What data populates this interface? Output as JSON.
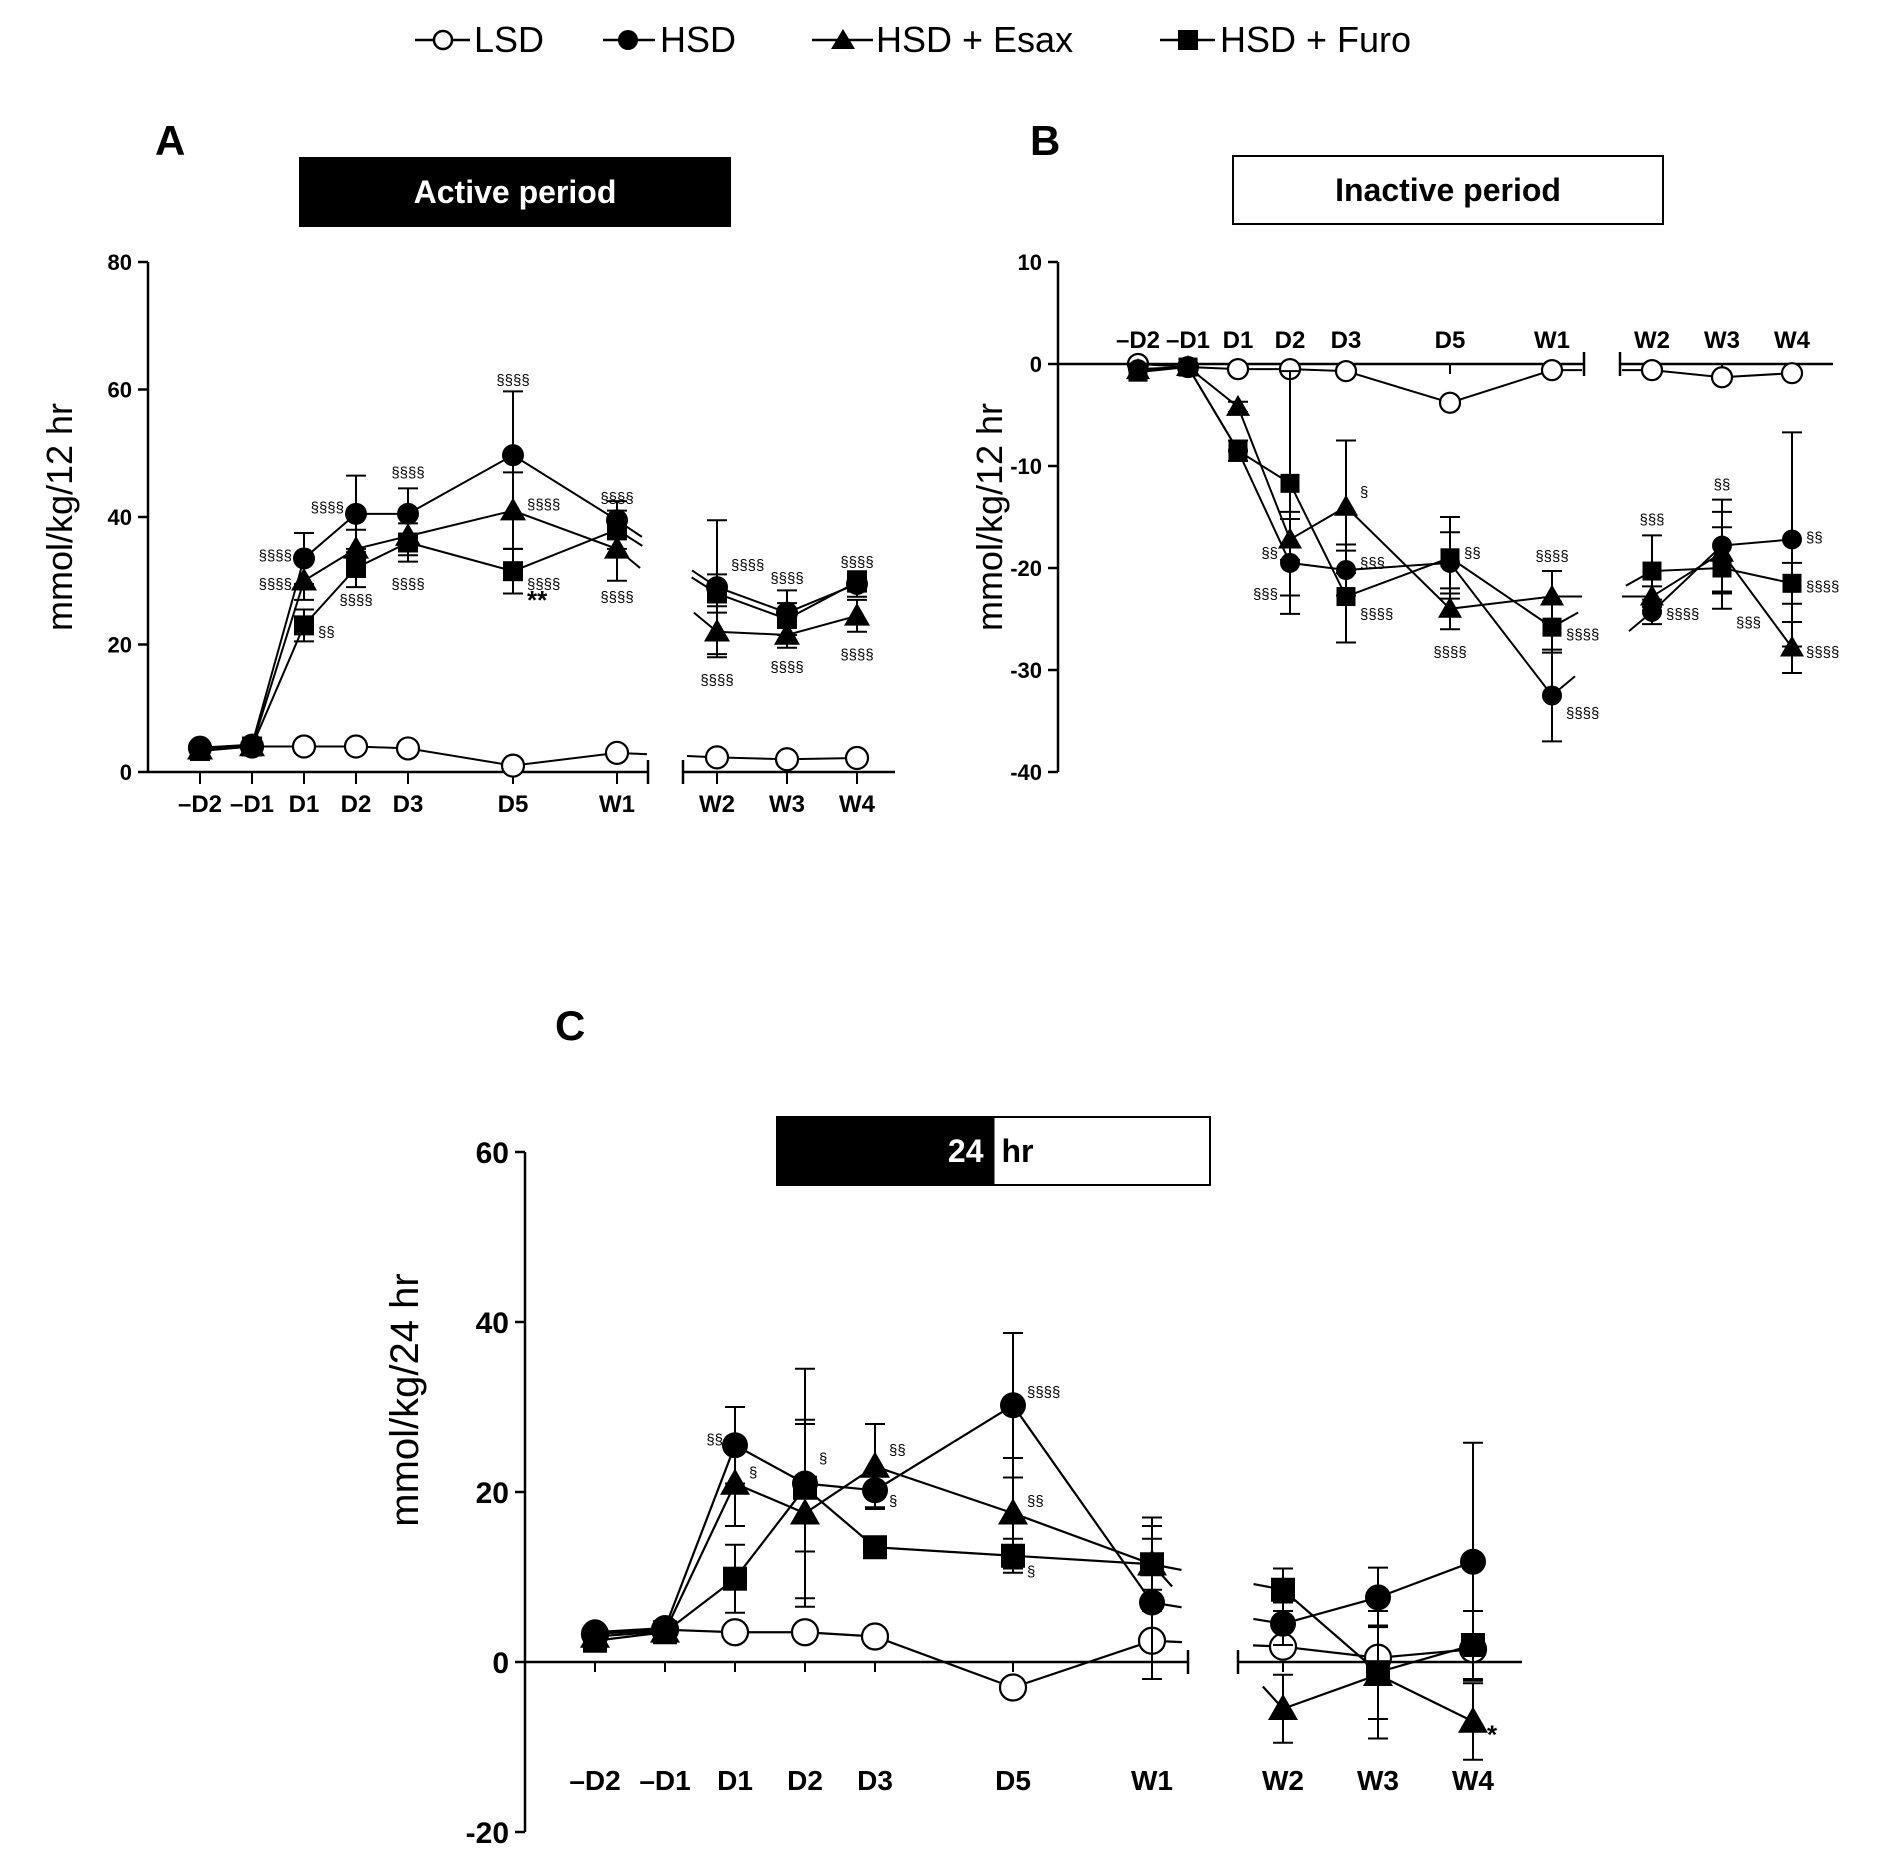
{
  "legend": {
    "items": [
      {
        "label": "LSD",
        "marker": "circle-open"
      },
      {
        "label": "HSD",
        "marker": "circle-filled"
      },
      {
        "label": "HSD + Esax",
        "marker": "triangle-filled"
      },
      {
        "label": "HSD + Furo",
        "marker": "square-filled"
      }
    ]
  },
  "chart_data": [
    {
      "panel": "A",
      "type": "line",
      "banner": {
        "text": "Active period",
        "style": "black"
      },
      "ylabel": "mmol/kg/12 hr",
      "ylim": [
        0,
        80
      ],
      "yticks": [
        0,
        20,
        40,
        60,
        80
      ],
      "categories": [
        "–D2",
        "–D1",
        "D1",
        "D2",
        "D3",
        "D5",
        "W1",
        "W2",
        "W3",
        "W4"
      ],
      "axis_break_after": "W1",
      "series": [
        {
          "name": "LSD",
          "values": [
            3.8,
            4.0,
            4.0,
            4.0,
            3.7,
            1.0,
            3.0,
            2.3,
            2.0,
            2.2
          ],
          "errors": [
            0,
            0,
            0,
            0,
            0,
            0,
            0,
            0,
            0,
            0
          ]
        },
        {
          "name": "HSD",
          "values": [
            3.8,
            4.3,
            33.5,
            40.5,
            40.5,
            49.7,
            39.5,
            29.0,
            25.0,
            29.5
          ],
          "errors": [
            0,
            0,
            4.0,
            6.0,
            4.0,
            10.0,
            3.0,
            10.5,
            3.5,
            2.0
          ]
        },
        {
          "name": "HSD + Esax",
          "values": [
            3.5,
            4.0,
            30.0,
            35.0,
            37.0,
            41.0,
            35.0,
            22.0,
            21.5,
            24.5
          ],
          "errors": [
            0,
            0,
            3.0,
            3.0,
            3.0,
            6.0,
            5.0,
            4.0,
            2.0,
            2.5
          ]
        },
        {
          "name": "HSD + Furo",
          "values": [
            3.3,
            4.0,
            23.0,
            32.0,
            36.0,
            31.5,
            38.0,
            28.0,
            24.0,
            29.8
          ],
          "errors": [
            0,
            0,
            2.5,
            3.0,
            3.0,
            3.5,
            3.0,
            3.0,
            2.5,
            1.5
          ]
        }
      ],
      "annotations": [
        {
          "at": "D1",
          "y": 34,
          "text": "§§§§",
          "side": "left"
        },
        {
          "at": "D1",
          "y": 29.5,
          "text": "§§§§",
          "side": "left"
        },
        {
          "at": "D1",
          "y": 22,
          "text": "§§",
          "side": "right"
        },
        {
          "at": "D2",
          "y": 41.5,
          "text": "§§§§",
          "side": "left"
        },
        {
          "at": "D2",
          "y": 27,
          "text": "§§§§",
          "side": "center"
        },
        {
          "at": "D3",
          "y": 47,
          "text": "§§§§",
          "side": "center"
        },
        {
          "at": "D3",
          "y": 29.5,
          "text": "§§§§",
          "side": "center"
        },
        {
          "at": "D5",
          "y": 61.5,
          "text": "§§§§",
          "side": "center"
        },
        {
          "at": "D5",
          "y": 42,
          "text": "§§§§",
          "side": "right"
        },
        {
          "at": "D5",
          "y": 29.5,
          "text": "§§§§",
          "side": "right"
        },
        {
          "at": "D5",
          "y": 27,
          "text": "**",
          "side": "right",
          "size": "large"
        },
        {
          "at": "W1",
          "y": 43,
          "text": "§§§§",
          "side": "center"
        },
        {
          "at": "W1",
          "y": 27.5,
          "text": "§§§§",
          "side": "center"
        },
        {
          "at": "W2",
          "y": 32.5,
          "text": "§§§§",
          "side": "right"
        },
        {
          "at": "W2",
          "y": 14.5,
          "text": "§§§§",
          "side": "center"
        },
        {
          "at": "W3",
          "y": 30.5,
          "text": "§§§§",
          "side": "center"
        },
        {
          "at": "W3",
          "y": 16.5,
          "text": "§§§§",
          "side": "center"
        },
        {
          "at": "W4",
          "y": 33,
          "text": "§§§§",
          "side": "center"
        },
        {
          "at": "W4",
          "y": 18.5,
          "text": "§§§§",
          "side": "center"
        }
      ]
    },
    {
      "panel": "B",
      "type": "line",
      "banner": {
        "text": "Inactive period",
        "style": "white"
      },
      "ylabel": "mmol/kg/12 hr",
      "ylim": [
        -40,
        10
      ],
      "yticks": [
        10,
        0,
        -10,
        -20,
        -30,
        -40
      ],
      "categories": [
        "–D2",
        "–D1",
        "D1",
        "D2",
        "D3",
        "D5",
        "W1",
        "W2",
        "W3",
        "W4"
      ],
      "axis_break_after": "W1",
      "series": [
        {
          "name": "LSD",
          "values": [
            0,
            -0.3,
            -0.5,
            -0.5,
            -0.7,
            -3.8,
            -0.6,
            -0.6,
            -1.3,
            -0.9
          ],
          "errors": [
            0,
            0,
            0,
            0,
            0,
            0,
            0,
            0,
            0,
            0
          ]
        },
        {
          "name": "HSD",
          "values": [
            -0.5,
            -0.3,
            -8.5,
            -19.5,
            -20.2,
            -19.5,
            -32.5,
            -24.3,
            -17.8,
            -17.2
          ],
          "errors": [
            0,
            0,
            1.0,
            5.0,
            2.5,
            3.0,
            4.5,
            1.2,
            4.5,
            10.5
          ]
        },
        {
          "name": "HSD + Esax",
          "values": [
            -0.6,
            -0.3,
            -4.2,
            -17.2,
            -14.0,
            -24.0,
            -22.8,
            -22.8,
            -18.5,
            -27.8
          ],
          "errors": [
            0,
            0,
            0.5,
            2.0,
            6.5,
            2.0,
            2.5,
            1.0,
            4.0,
            2.5
          ]
        },
        {
          "name": "HSD + Furo",
          "values": [
            -0.8,
            -0.3,
            -8.5,
            -11.7,
            -22.8,
            -19.0,
            -25.8,
            -20.3,
            -20.0,
            -21.5
          ],
          "errors": [
            0,
            0,
            1.0,
            11.0,
            4.5,
            4.0,
            2.5,
            3.5,
            4.0,
            2.0
          ]
        }
      ],
      "annotations": [
        {
          "at": "D2",
          "y": -18.5,
          "text": "§§",
          "side": "left"
        },
        {
          "at": "D2",
          "y": -22.5,
          "text": "§§§",
          "side": "left"
        },
        {
          "at": "D3",
          "y": -12.5,
          "text": "§",
          "side": "right"
        },
        {
          "at": "D3",
          "y": -19.5,
          "text": "§§§",
          "side": "right"
        },
        {
          "at": "D3",
          "y": -24.5,
          "text": "§§§§",
          "side": "right"
        },
        {
          "at": "D5",
          "y": -18.5,
          "text": "§§",
          "side": "right"
        },
        {
          "at": "D5",
          "y": -28.2,
          "text": "§§§§",
          "side": "center"
        },
        {
          "at": "W1",
          "y": -18.8,
          "text": "§§§§",
          "side": "center"
        },
        {
          "at": "W1",
          "y": -26.5,
          "text": "§§§§",
          "side": "right"
        },
        {
          "at": "W1",
          "y": -34.2,
          "text": "§§§§",
          "side": "right"
        },
        {
          "at": "W2",
          "y": -15.2,
          "text": "§§§",
          "side": "center"
        },
        {
          "at": "W2",
          "y": -24.5,
          "text": "§§§§",
          "side": "right"
        },
        {
          "at": "W3",
          "y": -11.8,
          "text": "§§",
          "side": "center"
        },
        {
          "at": "W3",
          "y": -25.3,
          "text": "§§§",
          "side": "right"
        },
        {
          "at": "W4",
          "y": -17.0,
          "text": "§§",
          "side": "right"
        },
        {
          "at": "W4",
          "y": -21.8,
          "text": "§§§§",
          "side": "right"
        },
        {
          "at": "W4",
          "y": -28.2,
          "text": "§§§§",
          "side": "right"
        }
      ]
    },
    {
      "panel": "C",
      "type": "line",
      "banner": {
        "left": "24",
        "right": "hr",
        "style": "split"
      },
      "ylabel": "mmol/kg/24 hr",
      "ylim": [
        -20,
        60
      ],
      "yticks": [
        60,
        40,
        20,
        0,
        -20
      ],
      "categories": [
        "–D2",
        "–D1",
        "D1",
        "D2",
        "D3",
        "D5",
        "W1",
        "W2",
        "W3",
        "W4"
      ],
      "axis_break_after": "W1",
      "series": [
        {
          "name": "LSD",
          "values": [
            3.3,
            3.8,
            3.5,
            3.5,
            3.0,
            -3.0,
            2.5,
            1.8,
            0.5,
            1.5
          ],
          "errors": [
            0,
            0,
            0,
            0,
            0,
            0,
            0,
            0,
            0,
            0
          ]
        },
        {
          "name": "HSD",
          "values": [
            3.5,
            4.0,
            25.5,
            21.0,
            20.2,
            30.2,
            7.0,
            4.5,
            7.6,
            11.8
          ],
          "errors": [
            0,
            0,
            4.5,
            13.5,
            2.0,
            8.5,
            9.0,
            2.5,
            3.5,
            14.0
          ]
        },
        {
          "name": "HSD + Esax",
          "values": [
            3.0,
            3.6,
            21.0,
            17.5,
            23.0,
            17.5,
            11.5,
            -5.5,
            -1.5,
            -7.0
          ],
          "errors": [
            0,
            0,
            5.0,
            11.0,
            5.0,
            6.5,
            5.5,
            4.0,
            7.5,
            4.5
          ]
        },
        {
          "name": "HSD + Furo",
          "values": [
            2.5,
            3.5,
            9.8,
            20.5,
            13.5,
            12.5,
            11.5,
            8.5,
            -1.2,
            2.0
          ],
          "errors": [
            0,
            0,
            4.0,
            7.5,
            0,
            2.0,
            3.0,
            2.5,
            5.5,
            4.0
          ]
        }
      ],
      "annotations": [
        {
          "at": "D1",
          "y": 26.2,
          "text": "§§",
          "side": "left"
        },
        {
          "at": "D1",
          "y": 22.3,
          "text": "§",
          "side": "right"
        },
        {
          "at": "D2",
          "y": 24.0,
          "text": "§",
          "side": "right"
        },
        {
          "at": "D3",
          "y": 25.0,
          "text": "§§",
          "side": "right"
        },
        {
          "at": "D3",
          "y": 19.0,
          "text": "§",
          "side": "right"
        },
        {
          "at": "D5",
          "y": 31.8,
          "text": "§§§§",
          "side": "right"
        },
        {
          "at": "D5",
          "y": 19.0,
          "text": "§§",
          "side": "right"
        },
        {
          "at": "D5",
          "y": 10.7,
          "text": "§",
          "side": "right"
        },
        {
          "at": "W4",
          "y": -8.5,
          "text": "*",
          "side": "right",
          "size": "large"
        }
      ]
    }
  ]
}
